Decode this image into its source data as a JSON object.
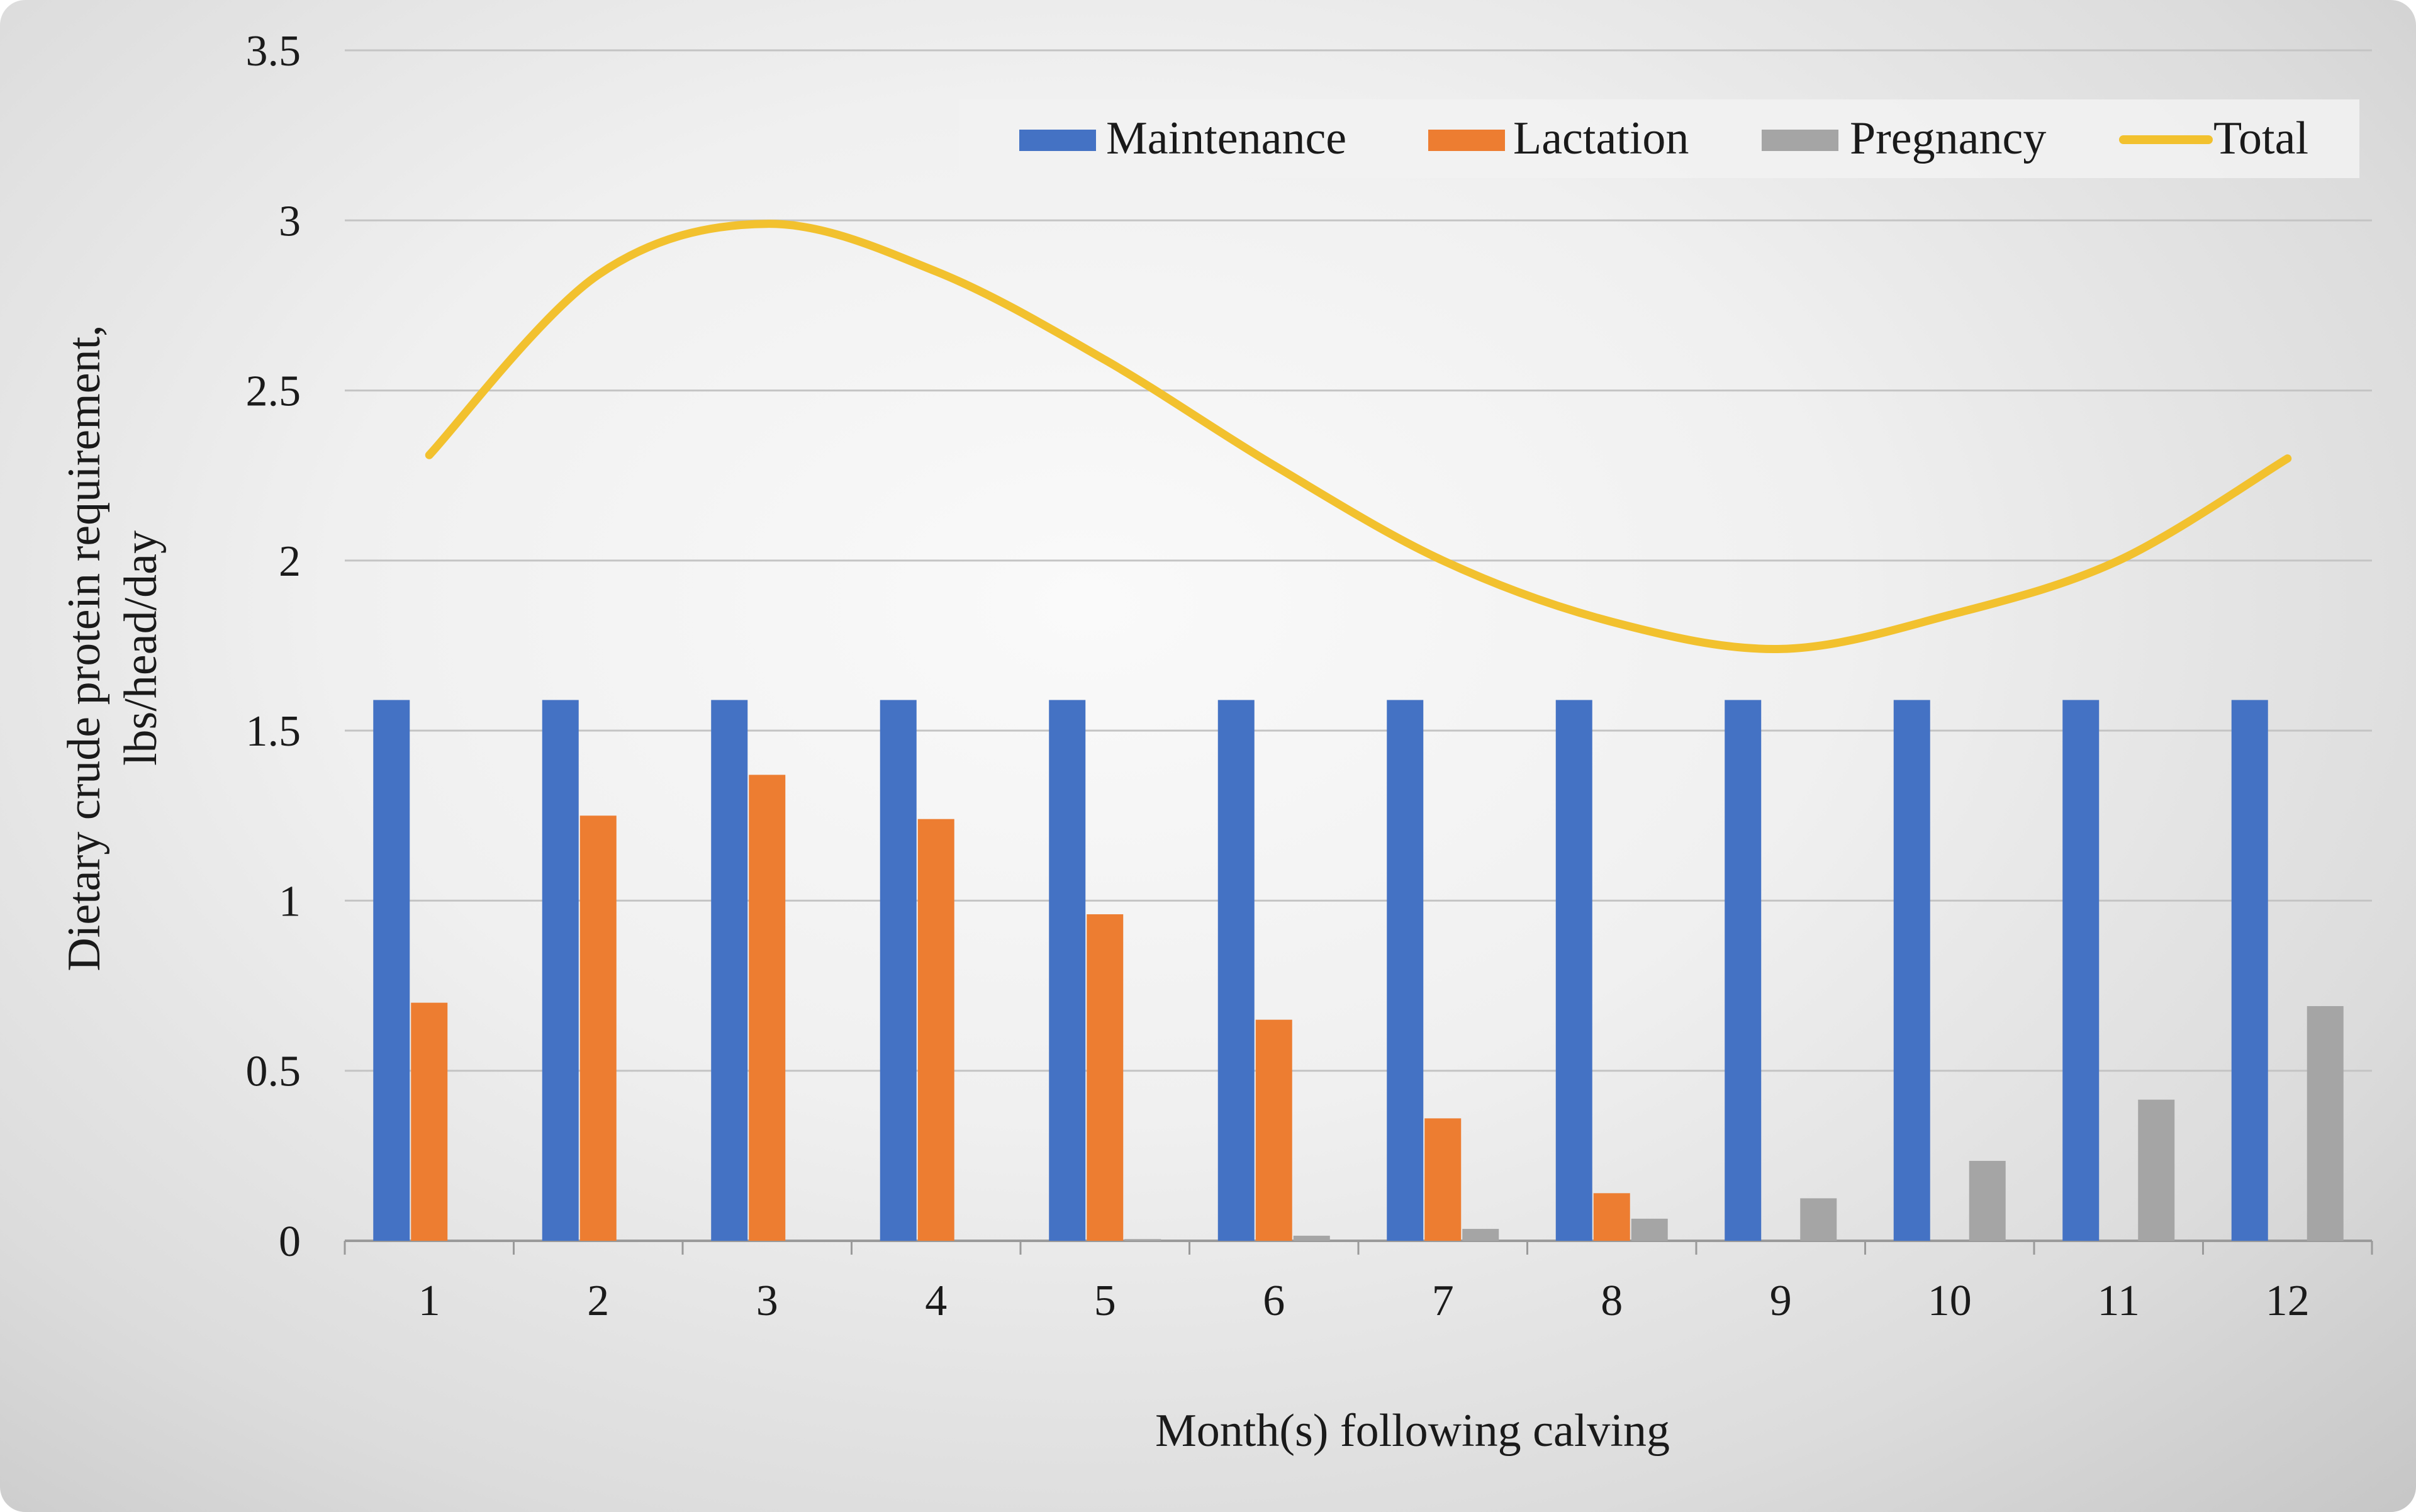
{
  "chart_data": {
    "type": "bar",
    "title": "",
    "xlabel": "Month(s) following calving",
    "ylabel_line1": "Dietary crude protein requirement,",
    "ylabel_line2": "lbs/head/day",
    "ylim": [
      0,
      3.5
    ],
    "y_ticks": [
      "0",
      "0.5",
      "1",
      "1.5",
      "2",
      "2.5",
      "3",
      "3.5"
    ],
    "y_tick_values": [
      0,
      0.5,
      1,
      1.5,
      2,
      2.5,
      3,
      3.5
    ],
    "categories": [
      "1",
      "2",
      "3",
      "4",
      "5",
      "6",
      "7",
      "8",
      "9",
      "10",
      "11",
      "12"
    ],
    "grid": true,
    "legend_position": "top-right",
    "series": [
      {
        "name": "Maintenance",
        "type": "bar",
        "color": "#4472C4",
        "values": [
          1.59,
          1.59,
          1.59,
          1.59,
          1.59,
          1.59,
          1.59,
          1.59,
          1.59,
          1.59,
          1.59,
          1.59
        ]
      },
      {
        "name": "Lactation",
        "type": "bar",
        "color": "#ED7D31",
        "values": [
          0.7,
          1.25,
          1.37,
          1.24,
          0.96,
          0.65,
          0.36,
          0.14,
          0,
          0,
          0,
          0
        ]
      },
      {
        "name": "Pregnancy",
        "type": "bar",
        "color": "#A5A5A5",
        "values": [
          0,
          0,
          0,
          0,
          0.005,
          0.015,
          0.035,
          0.065,
          0.125,
          0.235,
          0.415,
          0.69
        ]
      },
      {
        "name": "Total",
        "type": "line",
        "color": "#F2C12E",
        "values": [
          2.31,
          2.84,
          2.99,
          2.85,
          2.59,
          2.28,
          2.0,
          1.82,
          1.74,
          1.84,
          2.0,
          2.3
        ]
      }
    ]
  }
}
